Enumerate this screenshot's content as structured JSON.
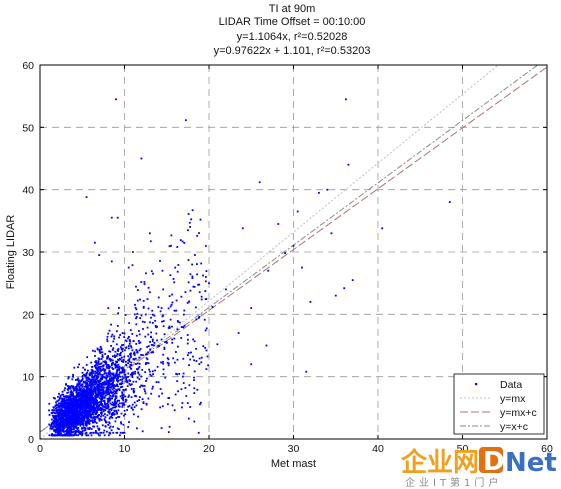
{
  "chart_data": {
    "type": "scatter",
    "title_lines": [
      "TI at 90m",
      "LIDAR Time Offset = 00:10:00",
      "y=1.1064x, r²=0.52028",
      "y=0.97622x + 1.101, r²=0.53203"
    ],
    "xlabel": "Met mast",
    "ylabel": "Floating LIDAR",
    "xlim": [
      0,
      60
    ],
    "ylim": [
      0,
      60
    ],
    "xticks": [
      0,
      10,
      20,
      30,
      40,
      50,
      60
    ],
    "yticks": [
      0,
      10,
      20,
      30,
      40,
      50,
      60
    ],
    "grid": true,
    "legend_position": "bottom-right",
    "series": [
      {
        "name": "Data",
        "kind": "points",
        "color": "#0000ff",
        "points": [
          [
            9,
            54.5
          ],
          [
            36.2,
            54.5
          ],
          [
            12,
            45
          ],
          [
            36.5,
            44
          ],
          [
            33,
            39.5
          ],
          [
            34,
            40
          ],
          [
            48.5,
            38
          ],
          [
            26,
            41.2
          ],
          [
            5.5,
            38.8
          ],
          [
            30.5,
            36.5
          ],
          [
            28.2,
            34.5
          ],
          [
            8.5,
            35.5
          ],
          [
            9.2,
            35.5
          ],
          [
            40.5,
            33.8
          ],
          [
            34.5,
            33
          ],
          [
            30,
            31
          ],
          [
            19,
            35.2
          ],
          [
            17.5,
            33.5
          ],
          [
            24,
            33.8
          ],
          [
            29,
            29.8
          ],
          [
            36,
            24.2
          ],
          [
            26.8,
            15
          ],
          [
            37,
            25.5
          ],
          [
            22,
            24
          ],
          [
            25,
            21
          ],
          [
            27,
            27
          ],
          [
            31,
            27.5
          ],
          [
            35,
            23
          ],
          [
            32,
            22
          ],
          [
            25,
            12
          ],
          [
            31.5,
            10.8
          ],
          [
            23.5,
            17
          ],
          [
            21,
            15.2
          ],
          [
            20,
            25
          ],
          [
            18,
            28
          ],
          [
            16,
            27.5
          ],
          [
            14.5,
            27
          ],
          [
            13,
            33
          ],
          [
            15.5,
            31
          ],
          [
            11,
            30
          ],
          [
            10.5,
            27.5
          ],
          [
            8.5,
            28.5
          ],
          [
            7,
            29.5
          ],
          [
            6.5,
            31.5
          ]
        ]
      },
      {
        "name": "y=mx",
        "kind": "line",
        "m": 1.1064,
        "c": 0,
        "color": "#bfbfbf"
      },
      {
        "name": "y=mx+c",
        "kind": "line",
        "m": 0.97622,
        "c": 1.101,
        "color": "#b07070"
      },
      {
        "name": "y=x+c",
        "kind": "line",
        "m": 1,
        "c": 1.101,
        "color": "#8a8a8a"
      }
    ]
  },
  "watermark": {
    "cn_text": "企业网",
    "brand_d": "D",
    "brand_rest": "Net",
    "tagline": "企业IT第1门户"
  }
}
